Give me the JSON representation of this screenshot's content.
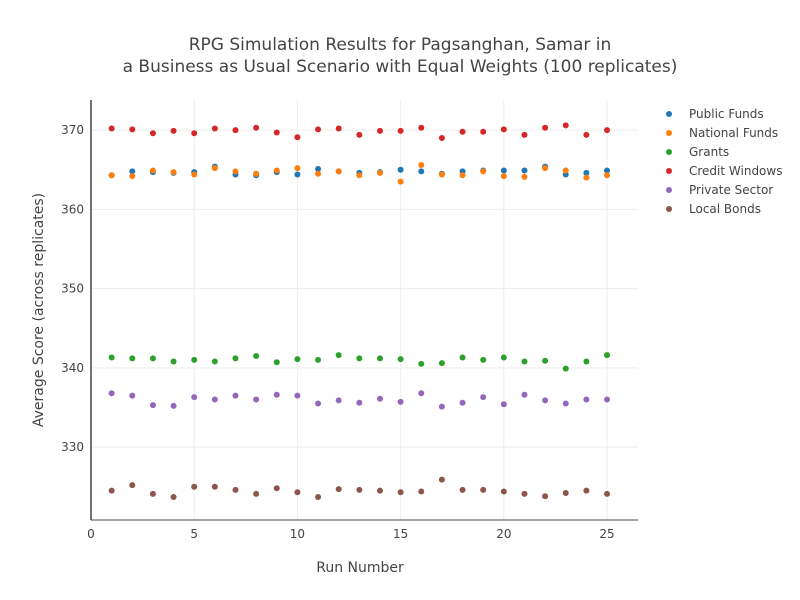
{
  "chart_data": {
    "type": "scatter",
    "title_lines": [
      "RPG Simulation Results for Pagsanghan, Samar in",
      "a Business as Usual Scenario with Equal Weights (100 replicates)"
    ],
    "xlabel": "Run Number",
    "ylabel": "Average Score (across replicates)",
    "xlim": [
      0,
      26.5
    ],
    "ylim": [
      320.8,
      373.8
    ],
    "x_ticks": [
      0,
      5,
      10,
      15,
      20,
      25
    ],
    "y_ticks": [
      330,
      340,
      350,
      360,
      370
    ],
    "grid": true,
    "legend_position": "top-right",
    "x": [
      1,
      2,
      3,
      4,
      5,
      6,
      7,
      8,
      9,
      10,
      11,
      12,
      13,
      14,
      15,
      16,
      17,
      18,
      19,
      20,
      21,
      22,
      23,
      24,
      25
    ],
    "series": [
      {
        "name": "Public Funds",
        "color": "#1f77b4",
        "values": [
          364.3,
          364.8,
          364.7,
          364.6,
          364.7,
          365.4,
          364.4,
          364.3,
          364.7,
          364.4,
          365.1,
          364.8,
          364.6,
          364.7,
          365.0,
          364.8,
          364.5,
          364.8,
          364.9,
          364.9,
          364.9,
          365.4,
          364.4,
          364.6,
          364.9
        ]
      },
      {
        "name": "National Funds",
        "color": "#ff7f0e",
        "values": [
          364.3,
          364.2,
          364.9,
          364.7,
          364.4,
          365.2,
          364.8,
          364.5,
          364.9,
          365.2,
          364.5,
          364.8,
          364.3,
          364.6,
          363.5,
          365.6,
          364.4,
          364.3,
          364.8,
          364.2,
          364.1,
          365.2,
          364.9,
          364.0,
          364.3
        ]
      },
      {
        "name": "Grants",
        "color": "#2ca02c",
        "values": [
          341.3,
          341.2,
          341.2,
          340.8,
          341.0,
          340.8,
          341.2,
          341.5,
          340.7,
          341.1,
          341.0,
          341.6,
          341.2,
          341.2,
          341.1,
          340.5,
          340.6,
          341.3,
          341.0,
          341.3,
          340.8,
          340.9,
          339.9,
          340.8,
          341.6
        ]
      },
      {
        "name": "Credit Windows",
        "color": "#d62728",
        "values": [
          370.2,
          370.1,
          369.6,
          369.9,
          369.6,
          370.2,
          370.0,
          370.3,
          369.7,
          369.1,
          370.1,
          370.2,
          369.4,
          369.9,
          369.9,
          370.3,
          369.0,
          369.8,
          369.8,
          370.1,
          369.4,
          370.3,
          370.6,
          369.4,
          370.0
        ]
      },
      {
        "name": "Private Sector",
        "color": "#9467bd",
        "values": [
          336.8,
          336.5,
          335.3,
          335.2,
          336.3,
          336.0,
          336.5,
          336.0,
          336.6,
          336.5,
          335.5,
          335.9,
          335.6,
          336.1,
          335.7,
          336.8,
          335.1,
          335.6,
          336.3,
          335.4,
          336.6,
          335.9,
          335.5,
          336.0,
          336.0
        ]
      },
      {
        "name": "Local Bonds",
        "color": "#8c564b",
        "values": [
          324.5,
          325.2,
          324.1,
          323.7,
          325.0,
          325.0,
          324.6,
          324.1,
          324.8,
          324.3,
          323.7,
          324.7,
          324.6,
          324.5,
          324.3,
          324.4,
          325.9,
          324.6,
          324.6,
          324.4,
          324.1,
          323.8,
          324.2,
          324.5,
          324.1
        ]
      }
    ]
  }
}
